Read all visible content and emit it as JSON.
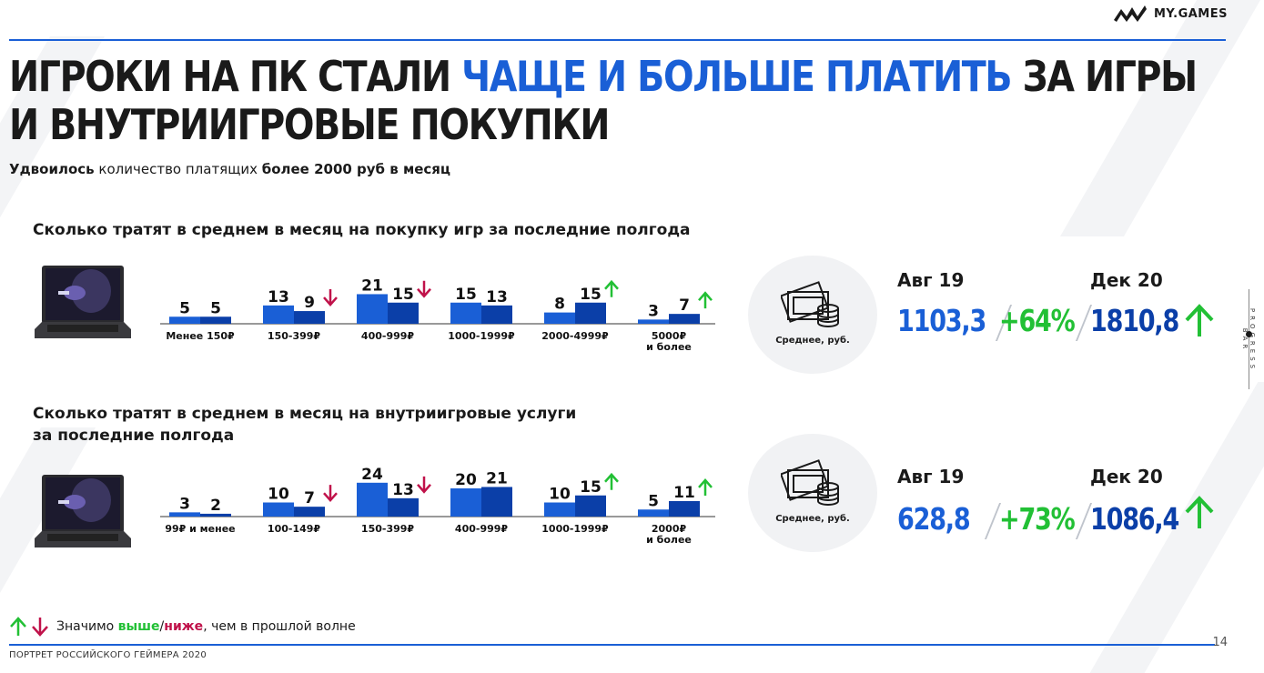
{
  "logo": {
    "text": "MY.GAMES"
  },
  "headline": {
    "line1_part1": "ИГРОКИ НА ПК СТАЛИ ",
    "line1_highlight": "ЧАЩЕ И БОЛЬШЕ ПЛАТИТЬ",
    "line1_part2": " ЗА ИГРЫ",
    "line2": "И ВНУТРИИГРОВЫЕ ПОКУПКИ"
  },
  "subhead": {
    "bold1": "Удвоилось",
    "text1": " количество платящих ",
    "bold2": "более 2000 руб в месяц"
  },
  "section1": {
    "title": "Сколько тратят в среднем в месяц на покупку игр за последние полгода",
    "stat_label": "Среднее, руб.",
    "period1": "Авг 19",
    "period2": "Дек 20",
    "value1": "1103,3",
    "change": "+64%",
    "value2": "1810,8"
  },
  "section2": {
    "title_line1": "Сколько тратят в среднем в месяц на внутриигровые услуги",
    "title_line2": "за последние полгода",
    "stat_label": "Среднее, руб.",
    "period1": "Авг 19",
    "period2": "Дек 20",
    "value1": "628,8",
    "change": "+73%",
    "value2": "1086,4"
  },
  "chart_data": [
    {
      "type": "bar",
      "categories": [
        "Менее 150₽",
        "150-399₽",
        "400-999₽",
        "1000-1999₽",
        "2000-4999₽",
        "5000₽|и более"
      ],
      "series": [
        {
          "values": [
            5,
            13,
            21,
            15,
            8,
            3
          ]
        },
        {
          "values": [
            5,
            9,
            15,
            13,
            15,
            7
          ]
        }
      ],
      "markers": [
        "",
        "down",
        "down",
        "",
        "up",
        "up"
      ],
      "ylim": [
        0,
        24
      ]
    },
    {
      "type": "bar",
      "categories": [
        "99₽ и менее",
        "100-149₽",
        "150-399₽",
        "400-999₽",
        "1000-1999₽",
        "2000₽|и более"
      ],
      "series": [
        {
          "values": [
            3,
            10,
            24,
            20,
            10,
            5
          ]
        },
        {
          "values": [
            2,
            7,
            13,
            21,
            15,
            11
          ]
        }
      ],
      "markers": [
        "",
        "down",
        "down",
        "",
        "up",
        "up"
      ],
      "ylim": [
        0,
        24
      ]
    }
  ],
  "legend": {
    "text1": "Значимо ",
    "higher": "выше",
    "sep": "/",
    "lower": "ниже",
    "text2": ", чем в прошлой волне"
  },
  "colors": {
    "accent": "#1a5fd6",
    "bar_dark": "#0b3fa8",
    "up": "#22c035",
    "down": "#c0124a"
  },
  "page_number": "14",
  "footer": "ПОРТРЕТ РОССИЙСКОГО ГЕЙМЕРА 2020",
  "progress_label": "PROGRESS BAR"
}
